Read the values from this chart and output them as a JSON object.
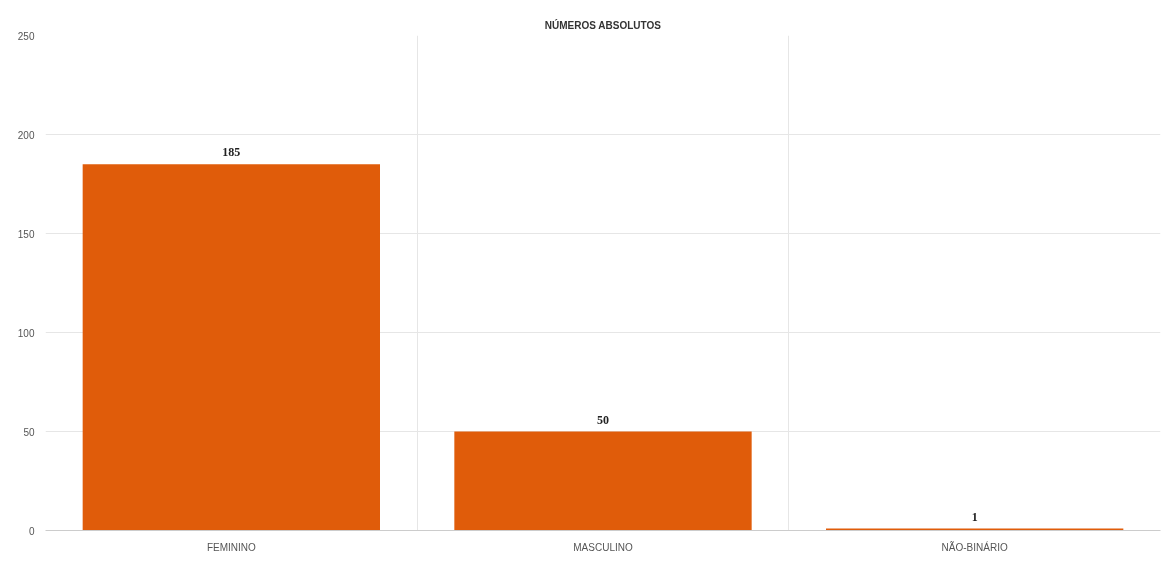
{
  "chart_data": {
    "type": "bar",
    "title": "NÚMEROS ABSOLUTOS",
    "categories": [
      "FEMININO",
      "MASCULINO",
      "NÃO-BINÁRIO"
    ],
    "values": [
      185,
      50,
      1
    ],
    "color": "#e05c0a",
    "ylim": [
      0,
      250
    ],
    "yticks": [
      0,
      50,
      100,
      150,
      200,
      250
    ],
    "grid": true,
    "data_labels": true
  }
}
